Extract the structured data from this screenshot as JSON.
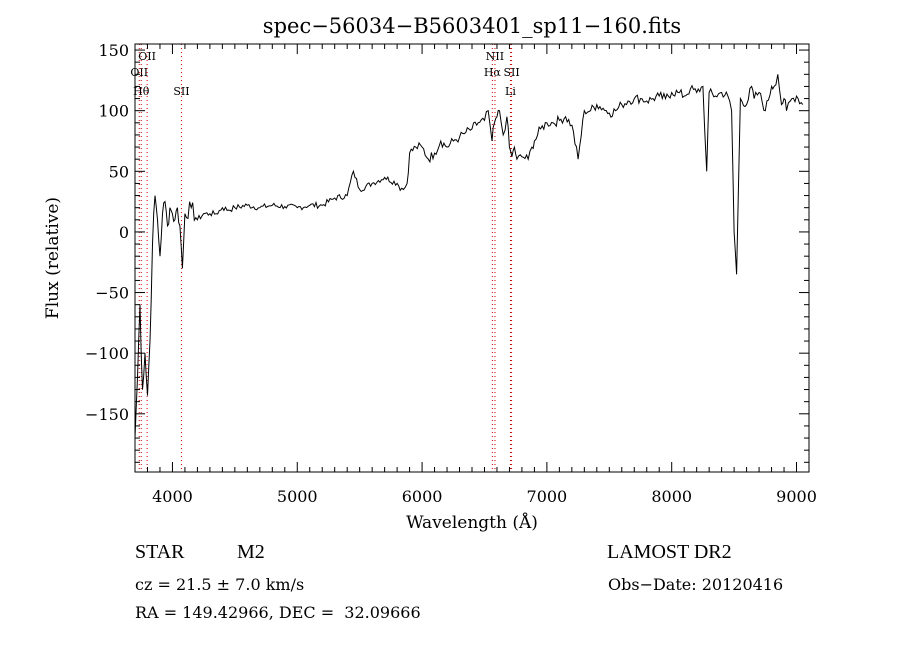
{
  "chart_data": {
    "type": "line",
    "title": "spec−56034−B5603401_sp11−160.fits",
    "xlabel": "Wavelength (Å)",
    "ylabel": "Flux (relative)",
    "xlim": [
      3700,
      9100
    ],
    "ylim": [
      -198,
      155
    ],
    "x_ticks": [
      4000,
      5000,
      6000,
      7000,
      8000,
      9000
    ],
    "y_ticks": [
      -150,
      -100,
      -50,
      0,
      50,
      100,
      150
    ],
    "tick_labels_y": [
      "−150",
      "−100",
      "−50",
      "0",
      "50",
      "100",
      "150"
    ],
    "series": [
      {
        "color": "#000000",
        "x": [
          3700,
          3720,
          3740,
          3760,
          3780,
          3800,
          3820,
          3840,
          3860,
          3880,
          3900,
          3920,
          3940,
          3960,
          3980,
          4000,
          4020,
          4040,
          4060,
          4080,
          4100,
          4150,
          4200,
          4250,
          4300,
          4350,
          4400,
          4450,
          4500,
          4600,
          4700,
          4800,
          4900,
          5000,
          5100,
          5200,
          5300,
          5400,
          5450,
          5500,
          5600,
          5700,
          5800,
          5850,
          5880,
          5900,
          5950,
          6000,
          6050,
          6100,
          6150,
          6200,
          6250,
          6300,
          6350,
          6400,
          6450,
          6500,
          6530,
          6560,
          6580,
          6600,
          6620,
          6650,
          6680,
          6700,
          6720,
          6740,
          6760,
          6800,
          6850,
          6880,
          6900,
          6950,
          7000,
          7050,
          7100,
          7150,
          7200,
          7250,
          7300,
          7350,
          7400,
          7450,
          7500,
          7550,
          7600,
          7650,
          7700,
          7750,
          7800,
          7850,
          7900,
          7950,
          8000,
          8050,
          8100,
          8150,
          8200,
          8250,
          8280,
          8300,
          8350,
          8400,
          8450,
          8480,
          8500,
          8520,
          8550,
          8600,
          8640,
          8660,
          8700,
          8750,
          8800,
          8820,
          8850,
          8880,
          8900,
          8920,
          8950,
          9000,
          9050
        ],
        "y": [
          -170,
          -120,
          -60,
          -130,
          -100,
          -135,
          -90,
          -10,
          30,
          10,
          -20,
          15,
          25,
          5,
          20,
          15,
          10,
          20,
          5,
          -30,
          15,
          20,
          10,
          15,
          15,
          15,
          20,
          18,
          20,
          22,
          20,
          22,
          21,
          20,
          22,
          22,
          28,
          30,
          50,
          35,
          40,
          45,
          40,
          35,
          40,
          65,
          70,
          70,
          60,
          65,
          75,
          70,
          75,
          78,
          82,
          85,
          90,
          92,
          100,
          75,
          90,
          95,
          100,
          80,
          95,
          70,
          62,
          70,
          60,
          62,
          60,
          70,
          75,
          85,
          90,
          90,
          92,
          95,
          88,
          60,
          100,
          100,
          105,
          102,
          98,
          100,
          105,
          108,
          110,
          110,
          108,
          110,
          112,
          110,
          115,
          115,
          112,
          118,
          115,
          120,
          50,
          115,
          112,
          115,
          112,
          100,
          0,
          -35,
          110,
          105,
          120,
          110,
          115,
          100,
          120,
          120,
          130,
          105,
          110,
          100,
          108,
          112,
          105
        ]
      }
    ],
    "line_markers": [
      {
        "x": 3734,
        "color": "#d00000",
        "label": "OII"
      },
      {
        "x": 3750,
        "color": "#d00000",
        "label": "Hθ"
      },
      {
        "x": 3797,
        "color": "#d00000",
        "label": "OII"
      },
      {
        "x": 4072,
        "color": "#d00000",
        "label": "SII"
      },
      {
        "x": 6563,
        "color": "#d00000",
        "label": "Hα"
      },
      {
        "x": 6584,
        "color": "#d00000",
        "label": "NII"
      },
      {
        "x": 6717,
        "color": "#d00000",
        "label": "SII"
      },
      {
        "x": 6708,
        "color": "#d00000",
        "label": "Li"
      }
    ]
  },
  "info": {
    "class_label": "STAR",
    "subclass": "M2",
    "survey": "LAMOST DR2",
    "cz": "cz = 21.5 ± 7.0 km/s",
    "obs_date": "Obs−Date: 20120416",
    "coords": "RA = 149.42966, DEC =  32.09666"
  }
}
